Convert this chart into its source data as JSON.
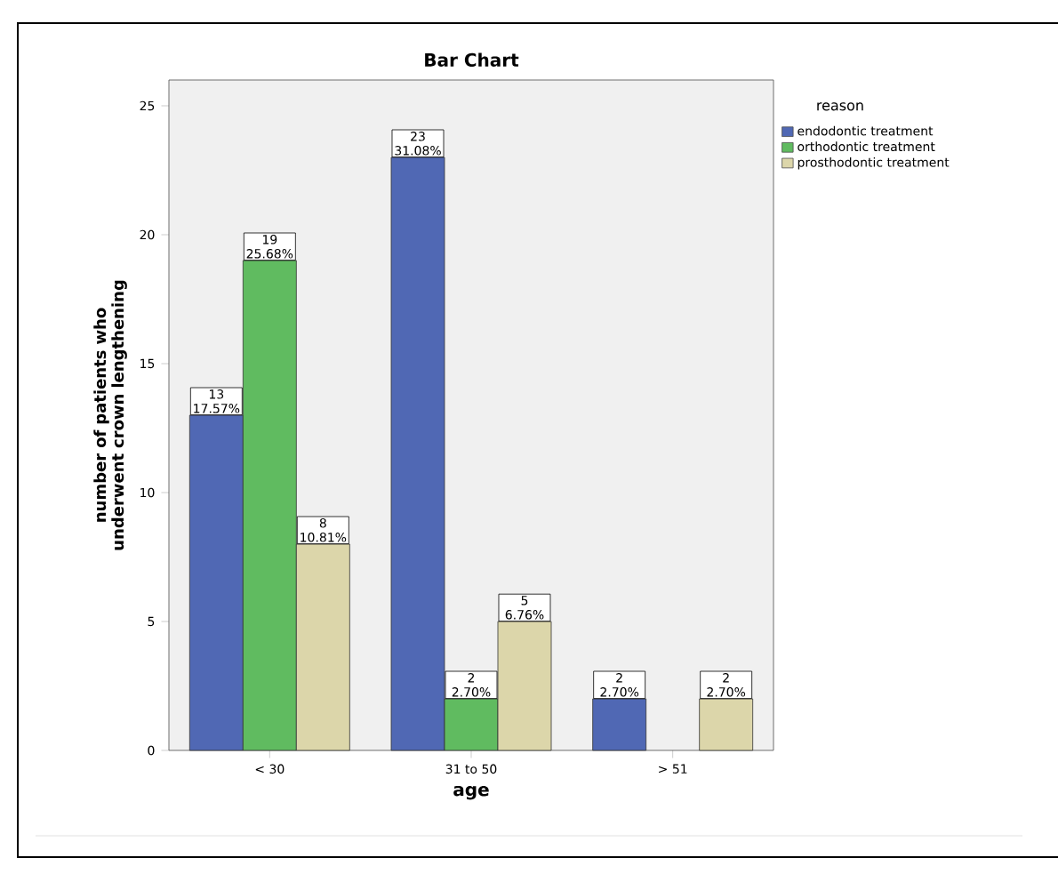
{
  "chart_data": {
    "type": "bar",
    "title": "Bar Chart",
    "xlabel": "age",
    "ylabel": "number of patients who underwent crown lengthening",
    "legend_title": "reason",
    "categories": [
      "< 30",
      "31 to 50",
      "> 51"
    ],
    "series": [
      {
        "name": "endodontic treatment",
        "color": "#5068b4",
        "values": [
          13,
          23,
          2
        ],
        "value_labels": [
          "13 17.57%",
          "23 31.08%",
          "2 2.70%"
        ]
      },
      {
        "name": "orthodontic treatment",
        "color": "#60bb60",
        "values": [
          19,
          2,
          null
        ],
        "value_labels": [
          "19 25.68%",
          "2 2.70%",
          null
        ]
      },
      {
        "name": "prosthodontic treatment",
        "color": "#dcd6aa",
        "values": [
          8,
          5,
          2
        ],
        "value_labels": [
          "8 10.81%",
          "5 6.76%",
          "2 2.70%"
        ]
      }
    ],
    "ylim": [
      0,
      26
    ],
    "yticks": [
      0,
      5,
      10,
      15,
      20,
      25
    ],
    "grid": false,
    "legend": "top right"
  }
}
